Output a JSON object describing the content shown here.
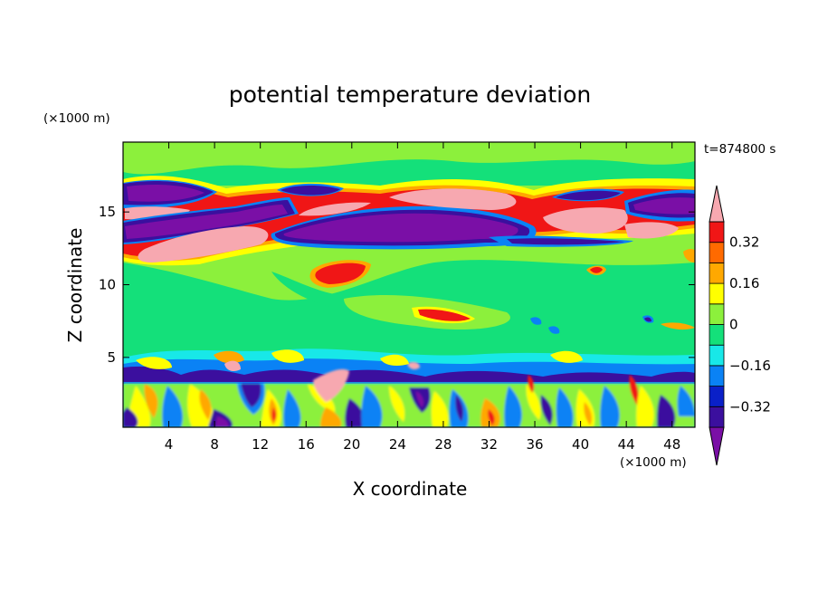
{
  "chart_data": {
    "type": "heatmap",
    "title": "potential temperature deviation",
    "xlabel": "X coordinate",
    "ylabel": "Z coordinate",
    "x_unit": "(×1000 m)",
    "y_unit": "(×1000 m)",
    "time_label": "t=874800 s",
    "xlim": [
      0,
      50
    ],
    "ylim": [
      0.2,
      19.8
    ],
    "x_ticks": [
      4,
      8,
      12,
      16,
      20,
      24,
      28,
      32,
      36,
      40,
      44,
      48
    ],
    "y_ticks": [
      5,
      10,
      15
    ],
    "colorbar": {
      "levels": [
        -0.4,
        -0.32,
        -0.24,
        -0.16,
        -0.08,
        0,
        0.08,
        0.16,
        0.24,
        0.32,
        0.4
      ],
      "labels": [
        "0.32",
        "0.16",
        "0",
        "−0.16",
        "−0.32"
      ],
      "label_values": [
        0.32,
        0.16,
        0,
        -0.16,
        -0.32
      ],
      "colors": [
        "#7a0fa6",
        "#3b0f9e",
        "#0a20c8",
        "#0a82f5",
        "#18e8e8",
        "#14e07a",
        "#8cf03c",
        "#ffff00",
        "#ffa800",
        "#ff6a00",
        "#f01616",
        "#f7a8b0"
      ]
    },
    "field_description_values": {
      "upper_layers": [
        {
          "x": [
            0,
            8
          ],
          "z": [
            16.0,
            17.2
          ],
          "value": -0.45
        },
        {
          "x": [
            0,
            6
          ],
          "z": [
            14.8,
            15.6
          ],
          "value": 0.45
        },
        {
          "x": [
            0,
            14
          ],
          "z": [
            12.8,
            14.2
          ],
          "value": -0.45
        },
        {
          "x": [
            2,
            16
          ],
          "z": [
            11.6,
            13.2
          ],
          "value": 0.45
        },
        {
          "x": [
            12,
            34
          ],
          "z": [
            12.2,
            15.0
          ],
          "value": -0.45
        },
        {
          "x": [
            16,
            34
          ],
          "z": [
            15.4,
            17.0
          ],
          "value": 0.45
        },
        {
          "x": [
            36,
            46
          ],
          "z": [
            13.6,
            15.6
          ],
          "value": 0.45
        },
        {
          "x": [
            44,
            50
          ],
          "z": [
            14.6,
            16.4
          ],
          "value": -0.45
        }
      ]
    }
  }
}
